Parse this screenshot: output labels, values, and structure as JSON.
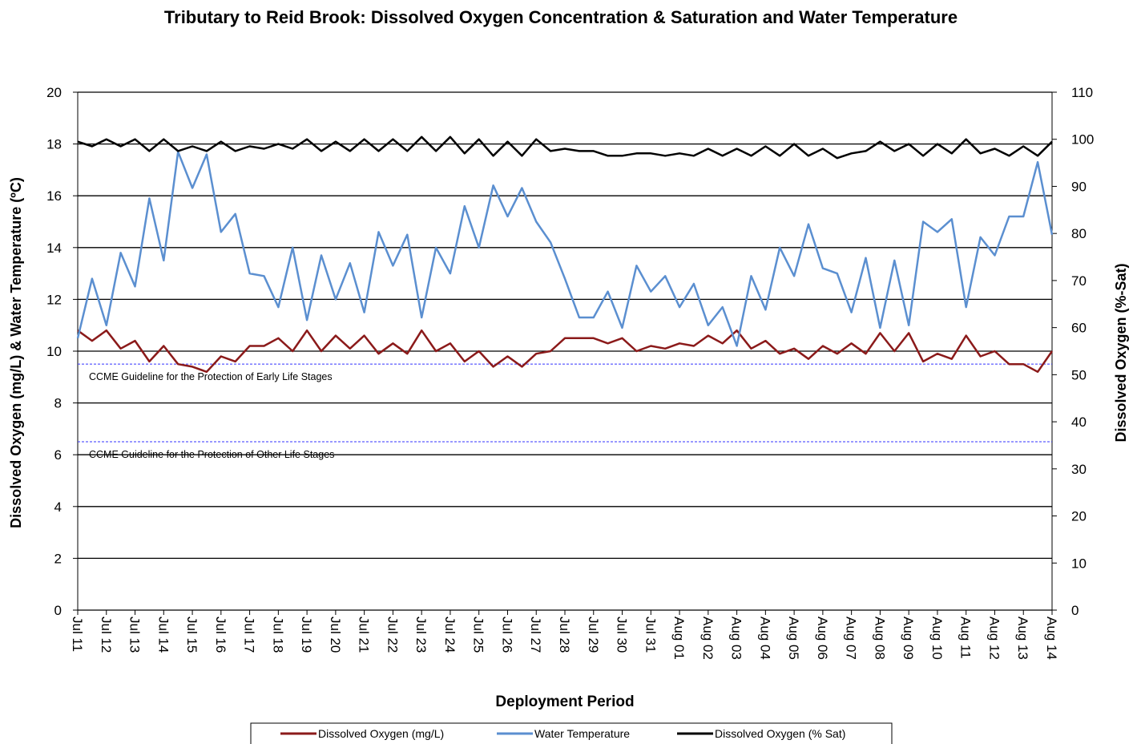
{
  "chart_data": {
    "type": "line",
    "title": "Tributary to Reid Brook: Dissolved Oxygen Concentration & Saturation and Water Temperature",
    "x_label": "Deployment Period",
    "y_label": "Dissolved  Oxygen (mg/L) & Water Temperature (ºC)",
    "y2_label": "Dissolved  Oxygen (%-Sat)",
    "categories": [
      "Jul 11",
      null,
      "Jul 12",
      null,
      "Jul 13",
      null,
      "Jul 14",
      null,
      "Jul 15",
      null,
      "Jul 16",
      null,
      "Jul 17",
      null,
      "Jul 18",
      null,
      "Jul 19",
      null,
      "Jul 20",
      null,
      "Jul 21",
      null,
      "Jul 22",
      null,
      "Jul 23",
      null,
      "Jul 24",
      null,
      "Jul 25",
      null,
      "Jul 26",
      null,
      "Jul 27",
      null,
      "Jul 28",
      null,
      "Jul 29",
      null,
      "Jul 30",
      null,
      "Jul 31",
      null,
      "Aug 01",
      null,
      "Aug 02",
      null,
      "Aug 03",
      null,
      "Aug 04",
      null,
      "Aug 05",
      null,
      "Aug 06",
      null,
      "Aug 07",
      null,
      "Aug 08",
      null,
      "Aug 09",
      null,
      "Aug 10",
      null,
      "Aug 11",
      null,
      "Aug 12",
      null,
      "Aug 13",
      null,
      "Aug 14"
    ],
    "series": [
      {
        "name": "Dissolved Oxygen (mg/L)",
        "color": "#8b1a1a",
        "axis": "y",
        "values": [
          10.8,
          10.4,
          10.8,
          10.1,
          10.4,
          9.6,
          10.2,
          9.5,
          9.4,
          9.2,
          9.8,
          9.6,
          10.2,
          10.2,
          10.5,
          10.0,
          10.8,
          10.0,
          10.6,
          10.1,
          10.6,
          9.9,
          10.3,
          9.9,
          10.8,
          10.0,
          10.3,
          9.6,
          10.0,
          9.4,
          9.8,
          9.4,
          9.9,
          10.0,
          10.5,
          10.5,
          10.5,
          10.3,
          10.5,
          10.0,
          10.2,
          10.1,
          10.3,
          10.2,
          10.6,
          10.3,
          10.8,
          10.1,
          10.4,
          9.9,
          10.1,
          9.7,
          10.2,
          9.9,
          10.3,
          9.9,
          10.7,
          10.0,
          10.7,
          9.6,
          9.9,
          9.7,
          10.6,
          9.8,
          10.0,
          9.5,
          9.5,
          9.2,
          10.0
        ]
      },
      {
        "name": "Water Temperature",
        "color": "#5b8fd0",
        "axis": "y",
        "values": [
          10.5,
          12.8,
          11.0,
          13.8,
          12.5,
          15.9,
          13.5,
          17.7,
          16.3,
          17.6,
          14.6,
          15.3,
          13.0,
          12.9,
          11.7,
          14.0,
          11.2,
          13.7,
          12.0,
          13.4,
          11.5,
          14.6,
          13.3,
          14.5,
          11.3,
          14.0,
          13.0,
          15.6,
          14.0,
          16.4,
          15.2,
          16.3,
          15.0,
          14.2,
          12.8,
          11.3,
          11.3,
          12.3,
          10.9,
          13.3,
          12.3,
          12.9,
          11.7,
          12.6,
          11.0,
          11.7,
          10.2,
          12.9,
          11.6,
          14.0,
          12.9,
          14.9,
          13.2,
          13.0,
          11.5,
          13.6,
          10.9,
          13.5,
          11.0,
          15.0,
          14.6,
          15.1,
          11.7,
          14.4,
          13.7,
          15.2,
          15.2,
          17.3,
          14.5
        ]
      },
      {
        "name": "Dissolved Oxygen (% Sat)",
        "color": "#000000",
        "axis": "y2",
        "values": [
          99.5,
          98.5,
          100,
          98.5,
          100,
          97.5,
          100,
          97.5,
          98.5,
          97.5,
          99.5,
          97.5,
          98.5,
          98,
          99,
          98,
          100,
          97.5,
          99.5,
          97.5,
          100,
          97.5,
          100,
          97.5,
          100.5,
          97.5,
          100.5,
          97,
          100,
          96.5,
          99.5,
          96.5,
          100,
          97.5,
          98,
          97.5,
          97.5,
          96.5,
          96.5,
          97,
          97,
          96.5,
          97,
          96.5,
          98,
          96.5,
          98,
          96.5,
          98.5,
          96.5,
          99,
          96.5,
          98,
          96,
          97,
          97.5,
          99.5,
          97.5,
          99,
          96.5,
          99,
          97,
          100,
          97,
          98,
          96.5,
          98.5,
          96.5,
          99.5
        ]
      }
    ],
    "ylim": [
      0,
      20
    ],
    "yticks": [
      0,
      2,
      4,
      6,
      8,
      10,
      12,
      14,
      16,
      18,
      20
    ],
    "y2lim": [
      0,
      110
    ],
    "y2ticks": [
      0,
      10,
      20,
      30,
      40,
      50,
      60,
      70,
      80,
      90,
      100,
      110
    ],
    "grid": true,
    "legend": "bottom",
    "guidelines": [
      {
        "value": 9.5,
        "label": "CCME Guideline  for the Protection of Early Life Stages",
        "color": "#3333ff"
      },
      {
        "value": 6.5,
        "label": "CCME Guideline  for the Protection of Other Life Stages",
        "color": "#3333ff"
      }
    ]
  }
}
